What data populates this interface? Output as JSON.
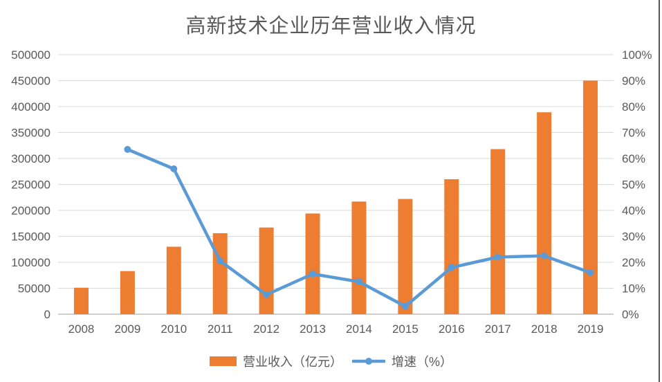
{
  "title": "高新技术企业历年营业收入情况",
  "colors": {
    "bar": "#ED7D31",
    "line": "#5B9BD5",
    "grid": "#D9D9D9",
    "axis_line": "#BFBFBF",
    "text": "#595959"
  },
  "legend": [
    {
      "label": "营业收入（亿元）",
      "marker": "bar-swatch",
      "color": "#ED7D31"
    },
    {
      "label": "增速（%）",
      "marker": "line-with-dot",
      "color": "#5B9BD5"
    }
  ],
  "chart_data": {
    "type": "bar",
    "subtype": "combo-bar-line-dual-axis",
    "title": "高新技术企业历年营业收入情况",
    "categories": [
      "2008",
      "2009",
      "2010",
      "2011",
      "2012",
      "2013",
      "2014",
      "2015",
      "2016",
      "2017",
      "2018",
      "2019"
    ],
    "series": [
      {
        "name": "营业收入（亿元）",
        "type": "bar",
        "axis": "left",
        "color": "#ED7D31",
        "values": [
          51000,
          83000,
          130000,
          156000,
          167000,
          194000,
          217000,
          222000,
          260000,
          318000,
          389000,
          450000
        ]
      },
      {
        "name": "增速（%）",
        "type": "line",
        "axis": "right",
        "color": "#5B9BD5",
        "values": [
          null,
          63.5,
          56,
          20.5,
          7.5,
          15.5,
          12.5,
          3,
          18,
          22,
          22.5,
          16
        ]
      }
    ],
    "left_axis": {
      "min": 0,
      "max": 500000,
      "step": 50000,
      "ticks": [
        "0",
        "50000",
        "100000",
        "150000",
        "200000",
        "250000",
        "300000",
        "350000",
        "400000",
        "450000",
        "500000"
      ]
    },
    "right_axis": {
      "min": 0,
      "max": 100,
      "step": 10,
      "ticks": [
        "0%",
        "10%",
        "20%",
        "30%",
        "40%",
        "50%",
        "60%",
        "70%",
        "80%",
        "90%",
        "100%"
      ]
    },
    "grid": true,
    "legend_position": "bottom",
    "xlabel": "",
    "ylabel": ""
  }
}
